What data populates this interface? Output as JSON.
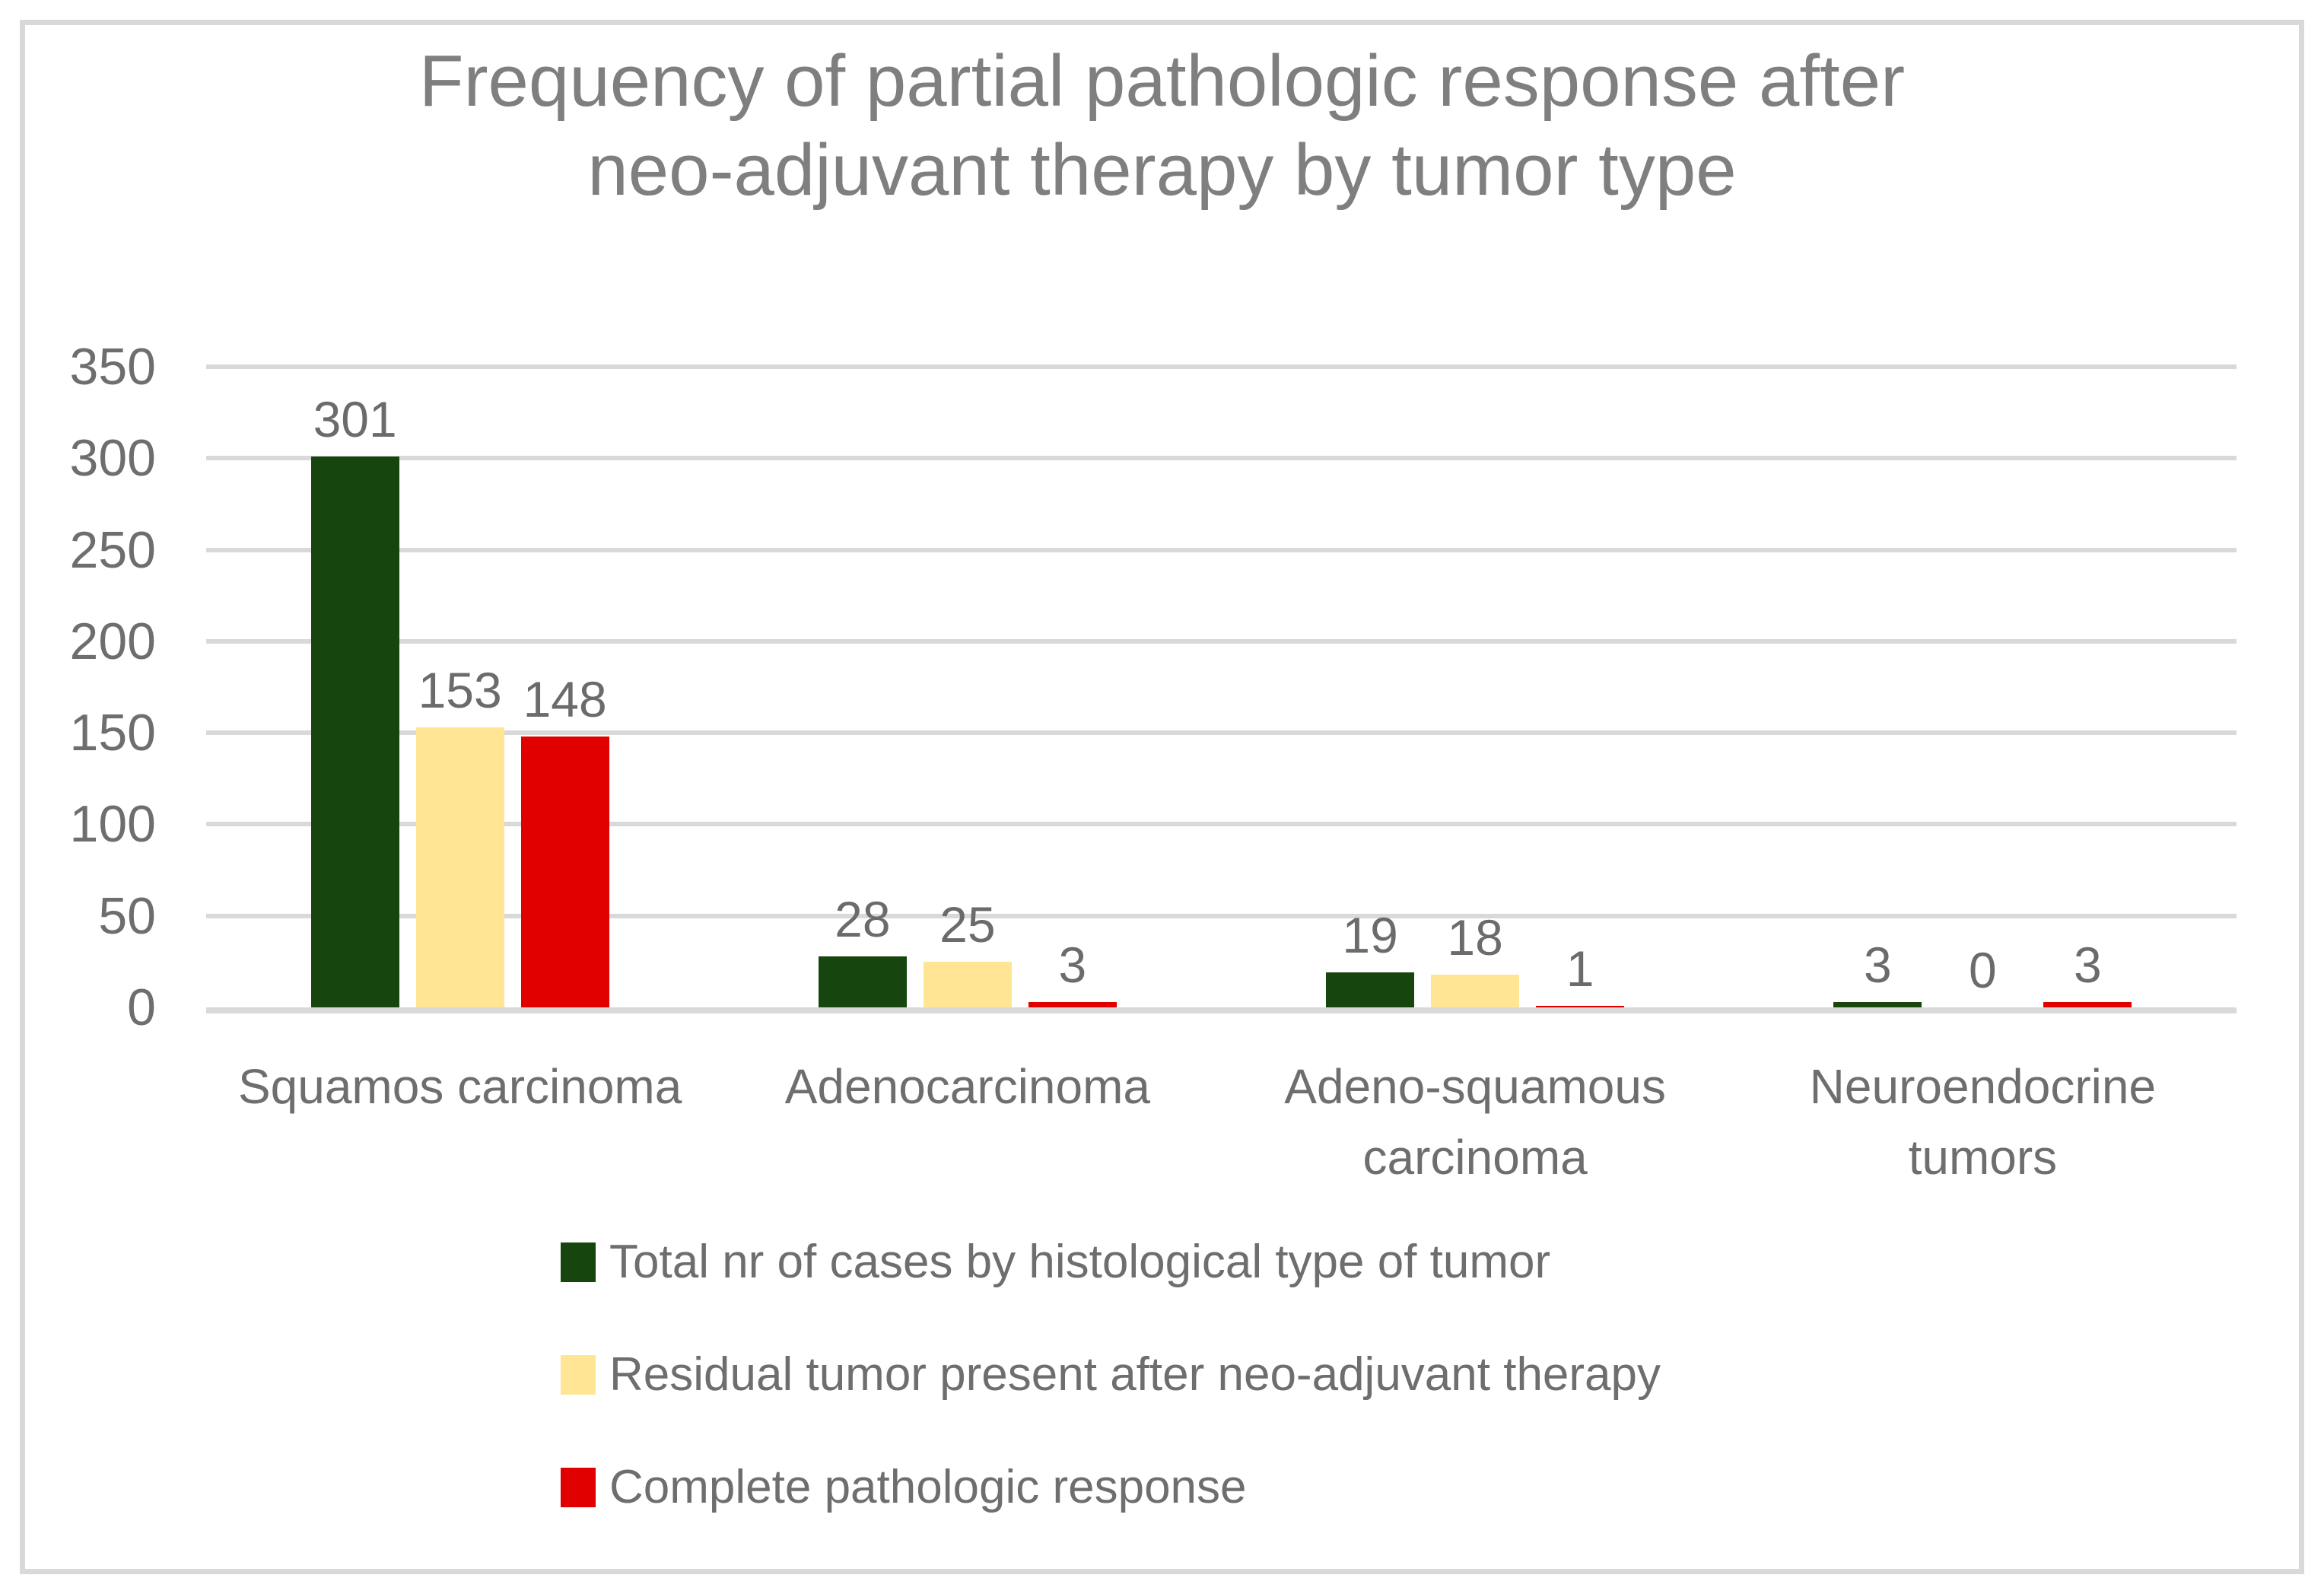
{
  "title_lines": [
    "Frequency of partial pathologic response after",
    "neo-adjuvant therapy by tumor type"
  ],
  "colors": {
    "title_text": "#7f7f7f",
    "axis_text": "#6e6e6e",
    "gridline": "#d9d9d9",
    "frame_border": "#d9d9d9",
    "series_green": "#17450e",
    "series_yellow": "#ffe594",
    "series_red": "#e00000"
  },
  "chart_data": {
    "type": "bar",
    "title": "Frequency of partial pathologic response after neo-adjuvant therapy by tumor type",
    "categories": [
      "Squamos carcinoma",
      "Adenocarcinoma",
      "Adeno-squamous carcinoma",
      "Neuroendocrine tumors"
    ],
    "series": [
      {
        "name": "Total nr of cases by histological type of tumor",
        "color": "#17450e",
        "values": [
          301,
          28,
          19,
          3
        ]
      },
      {
        "name": "Residual tumor present after neo-adjuvant therapy",
        "color": "#ffe594",
        "values": [
          153,
          25,
          18,
          0
        ]
      },
      {
        "name": "Complete pathologic response",
        "color": "#e00000",
        "values": [
          148,
          3,
          1,
          3
        ]
      }
    ],
    "xlabel": "",
    "ylabel": "",
    "ylim": [
      0,
      350
    ],
    "yticks": [
      0,
      50,
      100,
      150,
      200,
      250,
      300,
      350
    ],
    "grid": true,
    "data_labels": true,
    "legend_position": "bottom-left"
  }
}
